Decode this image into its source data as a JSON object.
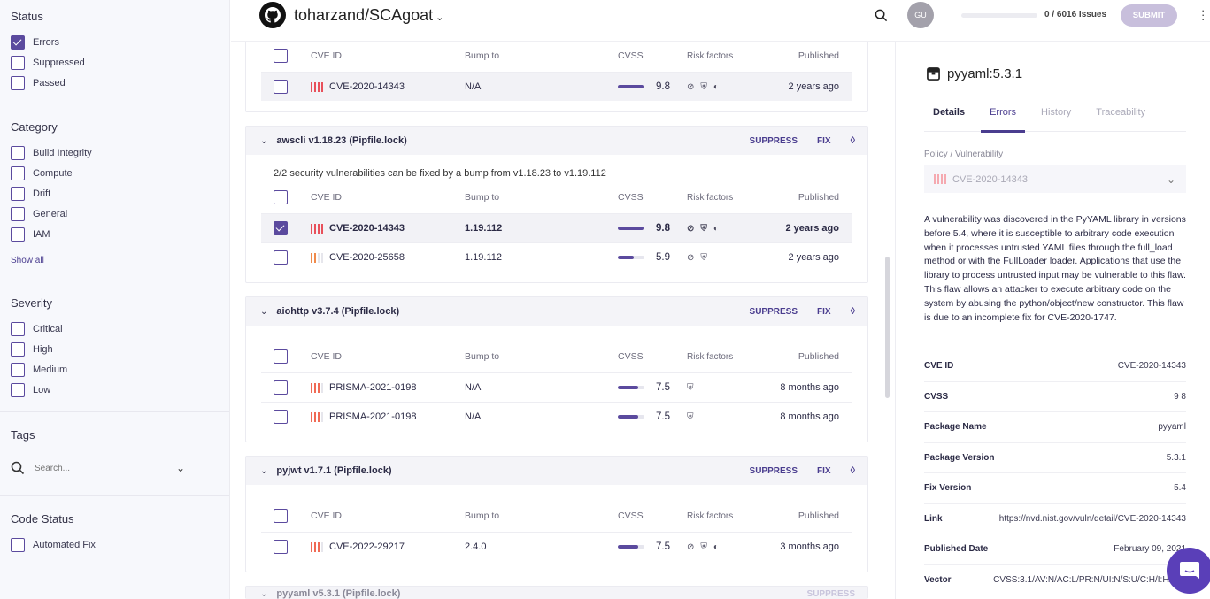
{
  "sidebar": {
    "status": {
      "title": "Status",
      "items": [
        {
          "label": "Errors",
          "checked": true
        },
        {
          "label": "Suppressed",
          "checked": false
        },
        {
          "label": "Passed",
          "checked": false
        }
      ]
    },
    "category": {
      "title": "Category",
      "items": [
        {
          "label": "Build Integrity"
        },
        {
          "label": "Compute"
        },
        {
          "label": "Drift"
        },
        {
          "label": "General"
        },
        {
          "label": "IAM"
        }
      ],
      "show_all": "Show all"
    },
    "severity": {
      "title": "Severity",
      "items": [
        {
          "label": "Critical"
        },
        {
          "label": "High"
        },
        {
          "label": "Medium"
        },
        {
          "label": "Low"
        }
      ]
    },
    "tags": {
      "title": "Tags",
      "placeholder": "Search..."
    },
    "code_status": {
      "title": "Code Status",
      "items": [
        {
          "label": "Automated Fix"
        }
      ]
    }
  },
  "header": {
    "repo": "toharzand/SCAgoat",
    "avatar": "GU",
    "progress_text": "0 / 6016 Issues",
    "progress": 0,
    "submit": "SUBMIT"
  },
  "columns": {
    "cve": "CVE ID",
    "bump": "Bump to",
    "cvss": "CVSS",
    "risk": "Risk factors",
    "published": "Published"
  },
  "actions": {
    "suppress": "SUPPRESS",
    "fix": "FIX"
  },
  "colors": {
    "accent": "#4a3d8f",
    "critical": "#e8505b",
    "high": "#f08a4b"
  },
  "groups": [
    {
      "title": "",
      "note": "",
      "rows": [
        {
          "id": "CVE-2020-14343",
          "bump": "N/A",
          "cvss": "9.8",
          "sev": 4,
          "sevColor": "#e8505b",
          "risk": [
            "exploit",
            "shield",
            "clock"
          ],
          "published": "2 years ago",
          "checked": false,
          "selected": true
        }
      ]
    },
    {
      "title": "awscli v1.18.23 (Pipfile.lock)",
      "note": "2/2 security vulnerabilities can be fixed by a bump from v1.18.23 to v1.19.112",
      "rows": [
        {
          "id": "CVE-2020-14343",
          "bump": "1.19.112",
          "cvss": "9.8",
          "sev": 4,
          "sevColor": "#e8505b",
          "risk": [
            "exploit",
            "shield",
            "clock"
          ],
          "published": "2 years ago",
          "checked": true,
          "selected": true
        },
        {
          "id": "CVE-2020-25658",
          "bump": "1.19.112",
          "cvss": "5.9",
          "sev": 2,
          "sevColor": "#f08a4b",
          "risk": [
            "exploit",
            "shield"
          ],
          "published": "2 years ago",
          "checked": false,
          "selected": false
        }
      ]
    },
    {
      "title": "aiohttp v3.7.4 (Pipfile.lock)",
      "note": "",
      "rows": [
        {
          "id": "PRISMA-2021-0198",
          "bump": "N/A",
          "cvss": "7.5",
          "sev": 3,
          "sevColor": "#f06a55",
          "risk": [
            "shield"
          ],
          "published": "8 months ago",
          "checked": false,
          "selected": false
        },
        {
          "id": "PRISMA-2021-0198",
          "bump": "N/A",
          "cvss": "7.5",
          "sev": 3,
          "sevColor": "#f06a55",
          "risk": [
            "shield"
          ],
          "published": "8 months ago",
          "checked": false,
          "selected": false
        }
      ]
    },
    {
      "title": "pyjwt v1.7.1 (Pipfile.lock)",
      "note": "",
      "rows": [
        {
          "id": "CVE-2022-29217",
          "bump": "2.4.0",
          "cvss": "7.5",
          "sev": 3,
          "sevColor": "#f06a55",
          "risk": [
            "exploit",
            "shield",
            "clock"
          ],
          "published": "3 months ago",
          "checked": false,
          "selected": false
        }
      ]
    },
    {
      "title": "pyyaml v5.3.1 (Pipfile.lock)",
      "note": "",
      "rows": []
    }
  ],
  "panel": {
    "title": "pyyaml:5.3.1",
    "tabs": [
      "Details",
      "Errors",
      "History",
      "Traceability"
    ],
    "policy_label": "Policy / Vulnerability",
    "policy_value": "CVE-2020-14343",
    "description": "A vulnerability was discovered in the PyYAML library in versions before 5.4, where it is susceptible to arbitrary code execution when it processes untrusted YAML files through the full_load method or with the FullLoader loader. Applications that use the library to process untrusted input may be vulnerable to this flaw. This flaw allows an attacker to execute arbitrary code on the system by abusing the python/object/new constructor. This flaw is due to an incomplete fix for CVE-2020-1747.",
    "details": [
      {
        "k": "CVE ID",
        "v": "CVE-2020-14343"
      },
      {
        "k": "CVSS",
        "v": "9 8"
      },
      {
        "k": "Package Name",
        "v": "pyyaml"
      },
      {
        "k": "Package Version",
        "v": "5.3.1"
      },
      {
        "k": "Fix Version",
        "v": "5.4"
      },
      {
        "k": "Link",
        "v": "https://nvd.nist.gov/vuln/detail/CVE-2020-14343"
      },
      {
        "k": "Published Date",
        "v": "February 09, 2021"
      },
      {
        "k": "Vector",
        "v": "CVSS:3.1/AV:N/AC:L/PR:N/UI:N/S:U/C:H/I:H/A:H"
      }
    ]
  }
}
